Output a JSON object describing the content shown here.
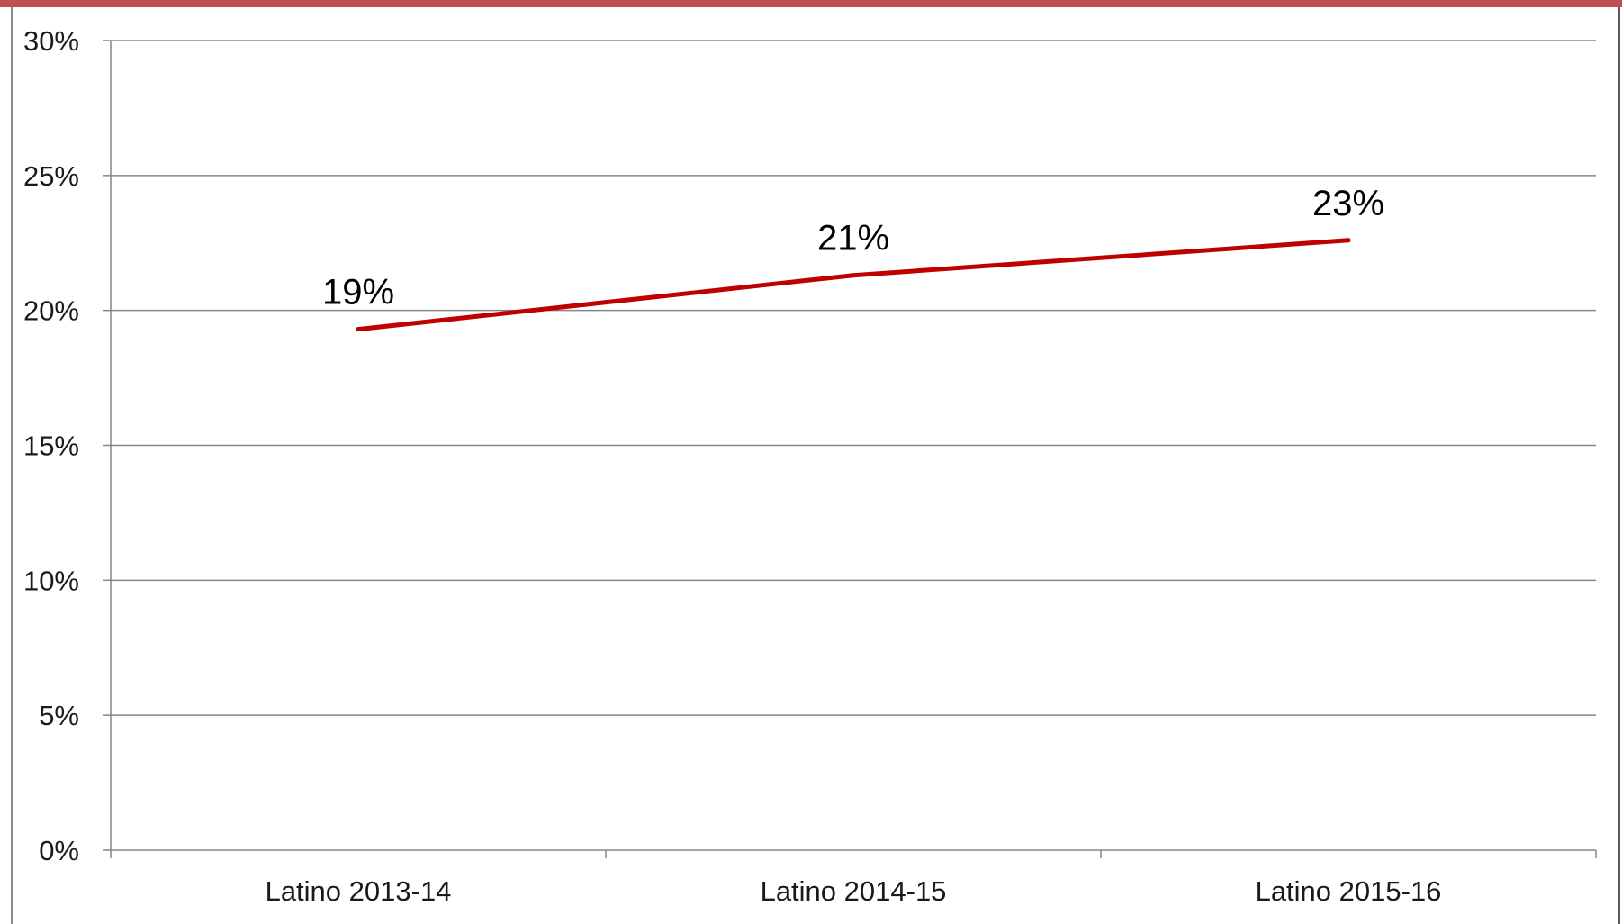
{
  "chart_data": {
    "type": "line",
    "title": "",
    "xlabel": "",
    "ylabel": "",
    "categories": [
      "Latino 2013-14",
      "Latino 2014-15",
      "Latino 2015-16"
    ],
    "series": [
      {
        "values": [
          0.193,
          0.213,
          0.226
        ],
        "data_labels": [
          "19%",
          "21%",
          "23%"
        ],
        "color": "#c00000"
      }
    ],
    "ylim": [
      0,
      0.3
    ],
    "y_ticks": [
      0,
      0.05,
      0.1,
      0.15,
      0.2,
      0.25,
      0.3
    ],
    "y_tick_labels": [
      "0%",
      "5%",
      "10%",
      "15%",
      "20%",
      "25%",
      "30%"
    ],
    "grid": true,
    "legend": "none"
  },
  "colors": {
    "frame_accent": "#c0504d",
    "gridline": "#868686",
    "axis": "#868686"
  }
}
